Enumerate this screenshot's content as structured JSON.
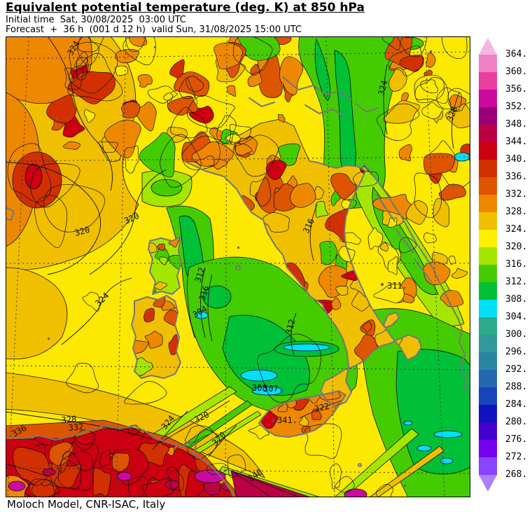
{
  "header": {
    "title": "Equivalent potential temperature (deg. K) at 850 hPa",
    "init_line": "Initial time  Sat, 30/08/2025  03:00 UTC",
    "forecast_line": "Forecast  +  36 h  (001 d 12 h)  valid Sun, 31/08/2025 15:00 UTC"
  },
  "footer": {
    "credit": "Moloch Model, CNR-ISAC, Italy"
  },
  "colorbar": {
    "levels": [
      "364.",
      "360.",
      "356.",
      "352.",
      "348.",
      "344.",
      "340.",
      "336.",
      "332.",
      "328.",
      "324.",
      "320.",
      "316.",
      "312.",
      "308.",
      "304.",
      "300.",
      "296.",
      "292.",
      "288.",
      "284.",
      "280.",
      "276.",
      "272.",
      "268."
    ],
    "segment_colors_top_to_bottom": [
      "#f081c5",
      "#ea3f9f",
      "#cc0aa0",
      "#990077",
      "#bb0044",
      "#cc0011",
      "#d23000",
      "#dd5500",
      "#ee8800",
      "#f0c000",
      "#fcf000",
      "#a5e600",
      "#44cc00",
      "#00c038",
      "#00e0f8",
      "#2cab8a",
      "#31999a",
      "#2a85a5",
      "#2468b0",
      "#1844bb",
      "#1111c0",
      "#4400cc",
      "#7700ee",
      "#8844ff"
    ],
    "arrow_top_color": "#f2b8df",
    "arrow_bottom_color": "#aa80ff"
  },
  "map": {
    "contour_labels": [
      {
        "text": "324"
      },
      {
        "text": "320"
      },
      {
        "text": "320"
      },
      {
        "text": "324"
      },
      {
        "text": "328"
      },
      {
        "text": "332"
      },
      {
        "text": "336"
      },
      {
        "text": "320"
      },
      {
        "text": "324"
      },
      {
        "text": "340"
      },
      {
        "text": "324"
      },
      {
        "text": "328"
      },
      {
        "text": "316"
      },
      {
        "text": "312"
      },
      {
        "text": "316"
      },
      {
        "text": "304"
      },
      {
        "text": "311."
      },
      {
        "text": "341."
      },
      {
        "text": "308"
      },
      {
        "text": "307."
      },
      {
        "text": "312"
      },
      {
        "text": "322"
      },
      {
        "text": "320"
      }
    ],
    "palette": {
      "yellow": "#fce800",
      "gold": "#f0c000",
      "orange": "#ee8800",
      "dark_orange": "#dd5500",
      "orange_red": "#d23000",
      "red": "#cc0011",
      "crimson": "#bb0044",
      "magenta": "#cc0aa0",
      "yellow_green": "#a5e600",
      "green": "#44cc00",
      "deep_green": "#00c038",
      "cyan": "#00e0f8"
    },
    "coastline_color": "#777777",
    "contour_color": "#111111",
    "grid_color": "#333333"
  }
}
